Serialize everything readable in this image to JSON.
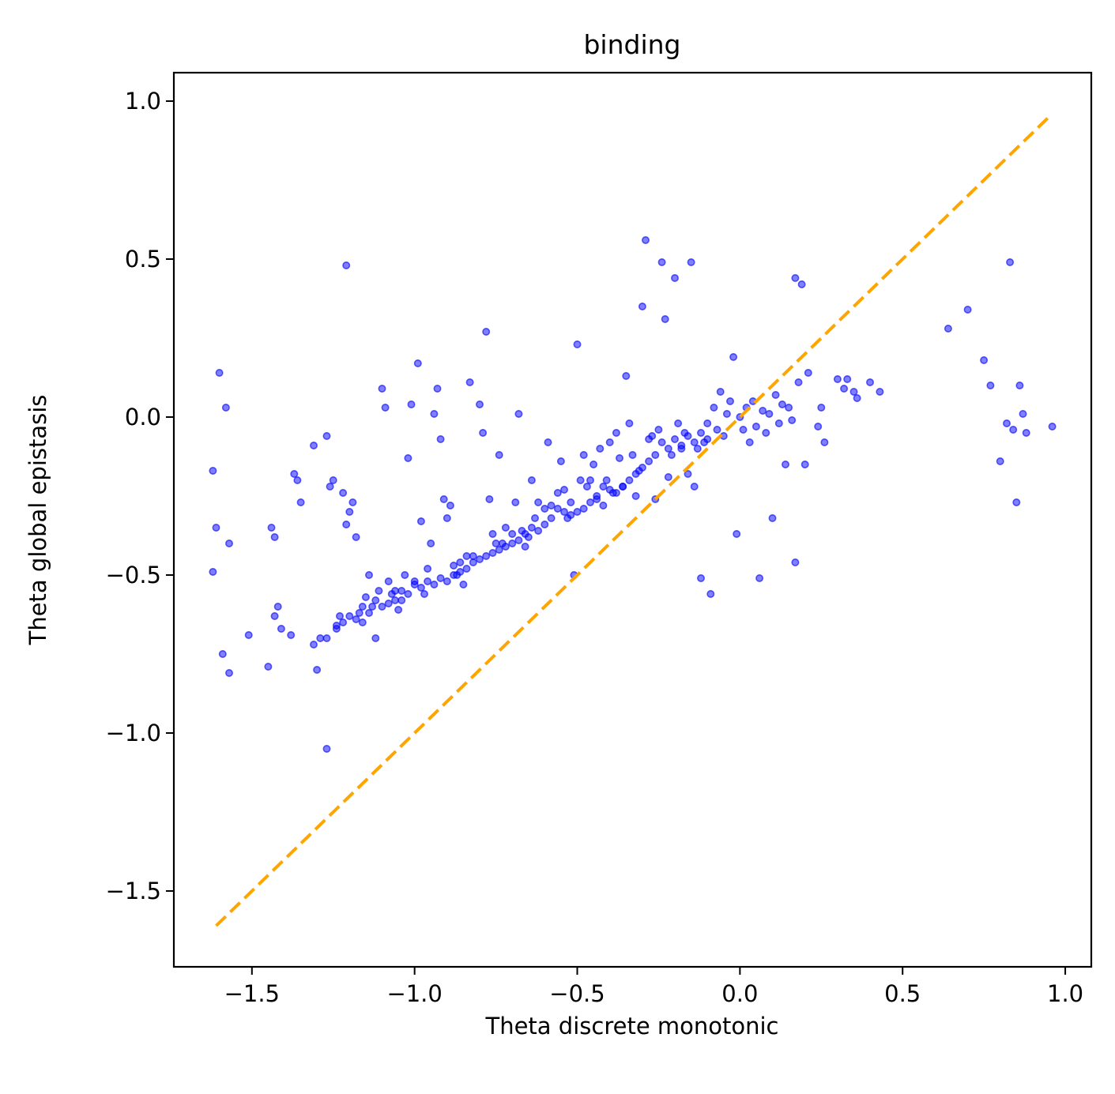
{
  "chart_data": {
    "type": "scatter",
    "title": "binding",
    "xlabel": "Theta discrete monotonic",
    "ylabel": "Theta global epistasis",
    "xlim": [
      -1.74,
      1.08
    ],
    "ylim": [
      -1.74,
      1.09
    ],
    "xticks": [
      -1.5,
      -1.0,
      -0.5,
      0.0,
      0.5,
      1.0
    ],
    "yticks": [
      -1.5,
      -1.0,
      -0.5,
      0.0,
      0.5,
      1.0
    ],
    "xtick_labels": [
      "−1.5",
      "−1.0",
      "−0.5",
      "0.0",
      "0.5",
      "1.0"
    ],
    "ytick_labels": [
      "−1.5",
      "−1.0",
      "−0.5",
      "0.0",
      "0.5",
      "1.0"
    ],
    "grid": false,
    "legend": "none",
    "colors": {
      "points": "#0000ff",
      "reference_line": "#ffa500"
    },
    "reference_line": {
      "style": "dashed",
      "x": [
        -1.61,
        0.95
      ],
      "y": [
        -1.61,
        0.95
      ]
    },
    "series": [
      {
        "points": [
          [
            -1.6,
            0.14
          ],
          [
            -1.58,
            0.03
          ],
          [
            -1.62,
            -0.17
          ],
          [
            -1.61,
            -0.35
          ],
          [
            -1.57,
            -0.4
          ],
          [
            -1.62,
            -0.49
          ],
          [
            -1.59,
            -0.75
          ],
          [
            -1.57,
            -0.81
          ],
          [
            -1.51,
            -0.69
          ],
          [
            -1.45,
            -0.79
          ],
          [
            -1.44,
            -0.35
          ],
          [
            -1.43,
            -0.38
          ],
          [
            -1.42,
            -0.6
          ],
          [
            -1.43,
            -0.63
          ],
          [
            -1.41,
            -0.67
          ],
          [
            -1.38,
            -0.69
          ],
          [
            -1.37,
            -0.18
          ],
          [
            -1.36,
            -0.2
          ],
          [
            -1.35,
            -0.27
          ],
          [
            -1.31,
            -0.72
          ],
          [
            -1.3,
            -0.8
          ],
          [
            -1.29,
            -0.7
          ],
          [
            -1.27,
            -0.7
          ],
          [
            -1.27,
            -0.06
          ],
          [
            -1.31,
            -0.09
          ],
          [
            -1.27,
            -1.05
          ],
          [
            -1.26,
            -0.22
          ],
          [
            -1.25,
            -0.2
          ],
          [
            -1.24,
            -0.66
          ],
          [
            -1.23,
            -0.63
          ],
          [
            -1.22,
            -0.24
          ],
          [
            -1.21,
            -0.34
          ],
          [
            -1.21,
            0.48
          ],
          [
            -1.2,
            -0.3
          ],
          [
            -1.19,
            -0.27
          ],
          [
            -1.18,
            -0.38
          ],
          [
            -1.17,
            -0.62
          ],
          [
            -1.16,
            -0.65
          ],
          [
            -1.15,
            -0.57
          ],
          [
            -1.14,
            -0.5
          ],
          [
            -1.13,
            -0.6
          ],
          [
            -1.12,
            -0.7
          ],
          [
            -1.11,
            -0.55
          ],
          [
            -1.1,
            0.09
          ],
          [
            -1.09,
            0.03
          ],
          [
            -1.08,
            -0.52
          ],
          [
            -1.07,
            -0.56
          ],
          [
            -1.06,
            -0.58
          ],
          [
            -1.05,
            -0.61
          ],
          [
            -1.04,
            -0.55
          ],
          [
            -1.03,
            -0.5
          ],
          [
            -1.02,
            -0.13
          ],
          [
            -1.01,
            0.04
          ],
          [
            -1.0,
            -0.53
          ],
          [
            -0.99,
            0.17
          ],
          [
            -0.98,
            -0.33
          ],
          [
            -0.97,
            -0.56
          ],
          [
            -0.96,
            -0.48
          ],
          [
            -0.95,
            -0.4
          ],
          [
            -0.94,
            0.01
          ],
          [
            -0.93,
            0.09
          ],
          [
            -0.92,
            -0.07
          ],
          [
            -0.91,
            -0.26
          ],
          [
            -0.9,
            -0.32
          ],
          [
            -0.89,
            -0.28
          ],
          [
            -0.88,
            -0.47
          ],
          [
            -0.87,
            -0.5
          ],
          [
            -0.86,
            -0.46
          ],
          [
            -0.85,
            -0.53
          ],
          [
            -0.84,
            -0.44
          ],
          [
            -0.83,
            0.11
          ],
          [
            -0.82,
            -0.44
          ],
          [
            -0.8,
            0.04
          ],
          [
            -0.79,
            -0.05
          ],
          [
            -0.78,
            0.27
          ],
          [
            -0.77,
            -0.26
          ],
          [
            -0.76,
            -0.37
          ],
          [
            -0.75,
            -0.4
          ],
          [
            -0.74,
            -0.12
          ],
          [
            -0.73,
            -0.4
          ],
          [
            -0.72,
            -0.35
          ],
          [
            -0.7,
            -0.37
          ],
          [
            -0.69,
            -0.27
          ],
          [
            -0.68,
            0.01
          ],
          [
            -0.67,
            -0.36
          ],
          [
            -0.66,
            -0.41
          ],
          [
            -0.65,
            -0.38
          ],
          [
            -0.64,
            -0.2
          ],
          [
            -0.63,
            -0.32
          ],
          [
            -0.62,
            -0.27
          ],
          [
            -0.6,
            -0.29
          ],
          [
            -0.59,
            -0.08
          ],
          [
            -0.58,
            -0.28
          ],
          [
            -0.56,
            -0.24
          ],
          [
            -0.55,
            -0.14
          ],
          [
            -0.54,
            -0.23
          ],
          [
            -0.53,
            -0.32
          ],
          [
            -0.52,
            -0.27
          ],
          [
            -0.51,
            -0.5
          ],
          [
            -0.5,
            0.23
          ],
          [
            -0.49,
            -0.2
          ],
          [
            -0.48,
            -0.12
          ],
          [
            -0.47,
            -0.22
          ],
          [
            -0.46,
            -0.2
          ],
          [
            -0.45,
            -0.15
          ],
          [
            -0.44,
            -0.26
          ],
          [
            -0.43,
            -0.1
          ],
          [
            -0.42,
            -0.28
          ],
          [
            -0.41,
            -0.2
          ],
          [
            -0.4,
            -0.08
          ],
          [
            -0.39,
            -0.24
          ],
          [
            -0.38,
            -0.05
          ],
          [
            -0.37,
            -0.13
          ],
          [
            -0.36,
            -0.22
          ],
          [
            -0.35,
            0.13
          ],
          [
            -0.34,
            -0.02
          ],
          [
            -0.33,
            -0.12
          ],
          [
            -0.32,
            -0.25
          ],
          [
            -0.31,
            -0.17
          ],
          [
            -0.3,
            0.35
          ],
          [
            -0.29,
            0.56
          ],
          [
            -0.28,
            -0.07
          ],
          [
            -0.27,
            -0.06
          ],
          [
            -0.26,
            -0.26
          ],
          [
            -0.25,
            -0.04
          ],
          [
            -0.24,
            0.49
          ],
          [
            -0.23,
            0.31
          ],
          [
            -0.22,
            -0.19
          ],
          [
            -0.21,
            -0.12
          ],
          [
            -0.2,
            0.44
          ],
          [
            -0.19,
            -0.02
          ],
          [
            -0.18,
            -0.1
          ],
          [
            -0.17,
            -0.05
          ],
          [
            -0.16,
            -0.18
          ],
          [
            -0.15,
            0.49
          ],
          [
            -0.14,
            -0.22
          ],
          [
            -0.13,
            -0.1
          ],
          [
            -0.12,
            -0.51
          ],
          [
            -0.11,
            -0.08
          ],
          [
            -0.1,
            -0.02
          ],
          [
            -0.09,
            -0.56
          ],
          [
            -0.08,
            0.03
          ],
          [
            -0.07,
            -0.04
          ],
          [
            -0.06,
            0.08
          ],
          [
            -0.05,
            -0.06
          ],
          [
            -0.04,
            0.01
          ],
          [
            -0.03,
            0.05
          ],
          [
            -0.02,
            0.19
          ],
          [
            -0.01,
            -0.37
          ],
          [
            0.0,
            0.0
          ],
          [
            0.01,
            -0.04
          ],
          [
            0.02,
            0.03
          ],
          [
            0.03,
            -0.08
          ],
          [
            0.04,
            0.05
          ],
          [
            0.05,
            -0.03
          ],
          [
            0.06,
            -0.51
          ],
          [
            0.07,
            0.02
          ],
          [
            0.08,
            -0.05
          ],
          [
            0.09,
            0.01
          ],
          [
            0.1,
            -0.32
          ],
          [
            0.11,
            0.07
          ],
          [
            0.12,
            -0.02
          ],
          [
            0.13,
            0.04
          ],
          [
            0.14,
            -0.15
          ],
          [
            0.15,
            0.03
          ],
          [
            0.16,
            -0.01
          ],
          [
            0.17,
            -0.46
          ],
          [
            0.17,
            0.44
          ],
          [
            0.18,
            0.11
          ],
          [
            0.19,
            0.42
          ],
          [
            0.2,
            -0.15
          ],
          [
            0.21,
            0.14
          ],
          [
            0.24,
            -0.03
          ],
          [
            0.25,
            0.03
          ],
          [
            0.26,
            -0.08
          ],
          [
            0.3,
            0.12
          ],
          [
            0.32,
            0.09
          ],
          [
            0.33,
            0.12
          ],
          [
            0.35,
            0.08
          ],
          [
            0.36,
            0.06
          ],
          [
            0.4,
            0.11
          ],
          [
            0.43,
            0.08
          ],
          [
            0.64,
            0.28
          ],
          [
            0.7,
            0.34
          ],
          [
            0.75,
            0.18
          ],
          [
            0.77,
            0.1
          ],
          [
            0.8,
            -0.14
          ],
          [
            0.82,
            -0.02
          ],
          [
            0.83,
            0.49
          ],
          [
            0.84,
            -0.04
          ],
          [
            0.85,
            -0.27
          ],
          [
            0.86,
            0.1
          ],
          [
            0.87,
            0.01
          ],
          [
            0.88,
            -0.05
          ],
          [
            0.96,
            -0.03
          ],
          [
            -0.2,
            -0.07
          ],
          [
            -0.18,
            -0.09
          ],
          [
            -0.16,
            -0.06
          ],
          [
            -0.14,
            -0.08
          ],
          [
            -0.12,
            -0.05
          ],
          [
            -0.1,
            -0.07
          ],
          [
            -0.22,
            -0.1
          ],
          [
            -0.24,
            -0.08
          ],
          [
            -0.26,
            -0.12
          ],
          [
            -0.28,
            -0.14
          ],
          [
            -0.3,
            -0.16
          ],
          [
            -0.32,
            -0.18
          ],
          [
            -0.34,
            -0.2
          ],
          [
            -0.36,
            -0.22
          ],
          [
            -0.38,
            -0.24
          ],
          [
            -0.4,
            -0.23
          ],
          [
            -0.42,
            -0.22
          ],
          [
            -0.44,
            -0.25
          ],
          [
            -0.46,
            -0.27
          ],
          [
            -0.48,
            -0.29
          ],
          [
            -0.5,
            -0.3
          ],
          [
            -0.52,
            -0.31
          ],
          [
            -0.54,
            -0.3
          ],
          [
            -0.56,
            -0.29
          ],
          [
            -0.58,
            -0.32
          ],
          [
            -0.6,
            -0.34
          ],
          [
            -0.62,
            -0.36
          ],
          [
            -0.64,
            -0.35
          ],
          [
            -0.66,
            -0.37
          ],
          [
            -0.68,
            -0.39
          ],
          [
            -0.7,
            -0.4
          ],
          [
            -0.72,
            -0.41
          ],
          [
            -0.74,
            -0.42
          ],
          [
            -0.76,
            -0.43
          ],
          [
            -0.78,
            -0.44
          ],
          [
            -0.8,
            -0.45
          ],
          [
            -0.82,
            -0.46
          ],
          [
            -0.84,
            -0.48
          ],
          [
            -0.86,
            -0.49
          ],
          [
            -0.88,
            -0.5
          ],
          [
            -0.9,
            -0.52
          ],
          [
            -0.92,
            -0.51
          ],
          [
            -0.94,
            -0.53
          ],
          [
            -0.96,
            -0.52
          ],
          [
            -0.98,
            -0.54
          ],
          [
            -1.0,
            -0.52
          ],
          [
            -1.02,
            -0.56
          ],
          [
            -1.04,
            -0.58
          ],
          [
            -1.06,
            -0.55
          ],
          [
            -1.08,
            -0.59
          ],
          [
            -1.1,
            -0.6
          ],
          [
            -1.12,
            -0.58
          ],
          [
            -1.14,
            -0.62
          ],
          [
            -1.16,
            -0.6
          ],
          [
            -1.18,
            -0.64
          ],
          [
            -1.2,
            -0.63
          ],
          [
            -1.22,
            -0.65
          ],
          [
            -1.24,
            -0.67
          ]
        ]
      }
    ]
  }
}
